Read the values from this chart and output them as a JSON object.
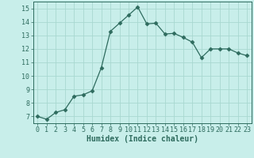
{
  "x": [
    0,
    1,
    2,
    3,
    4,
    5,
    6,
    7,
    8,
    9,
    10,
    11,
    12,
    13,
    14,
    15,
    16,
    17,
    18,
    19,
    20,
    21,
    22,
    23
  ],
  "y": [
    7.0,
    6.8,
    7.3,
    7.5,
    8.5,
    8.6,
    8.9,
    10.6,
    13.3,
    13.9,
    14.5,
    15.1,
    13.85,
    13.9,
    13.1,
    13.15,
    12.85,
    12.5,
    11.35,
    12.0,
    12.0,
    12.0,
    11.7,
    11.5
  ],
  "line_color": "#2e6b5e",
  "marker": "D",
  "marker_size": 2.5,
  "bg_color": "#c8eeea",
  "grid_color": "#a8d8d0",
  "xlabel": "Humidex (Indice chaleur)",
  "xlabel_fontsize": 7,
  "tick_fontsize": 6,
  "xlim": [
    -0.5,
    23.5
  ],
  "ylim": [
    6.5,
    15.5
  ],
  "yticks": [
    7,
    8,
    9,
    10,
    11,
    12,
    13,
    14,
    15
  ],
  "xticks": [
    0,
    1,
    2,
    3,
    4,
    5,
    6,
    7,
    8,
    9,
    10,
    11,
    12,
    13,
    14,
    15,
    16,
    17,
    18,
    19,
    20,
    21,
    22,
    23
  ]
}
